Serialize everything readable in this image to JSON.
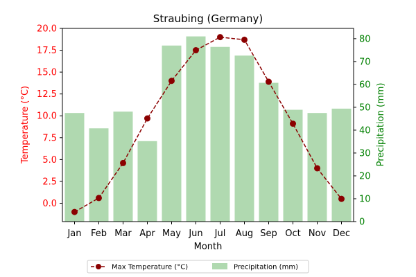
{
  "chart_data": {
    "type": "bar+line",
    "title": "Straubing (Germany)",
    "xlabel": "Month",
    "ylabel_left": "Temperature (°C)",
    "ylabel_right": "Precipitation (mm)",
    "categories": [
      "Jan",
      "Feb",
      "Mar",
      "Apr",
      "May",
      "Jun",
      "Jul",
      "Aug",
      "Sep",
      "Oct",
      "Nov",
      "Dec"
    ],
    "ylim_left": [
      -2.1,
      20.0
    ],
    "ylim_right": [
      0,
      84.5
    ],
    "yticks_left": [
      "0.0",
      "2.5",
      "5.0",
      "7.5",
      "10.0",
      "12.5",
      "15.0",
      "17.5",
      "20.0"
    ],
    "yticks_right": [
      "0",
      "10",
      "20",
      "30",
      "40",
      "50",
      "60",
      "70",
      "80"
    ],
    "grid": false,
    "legend_position": "bottom-center",
    "series": [
      {
        "name": "Max Temperature (°C)",
        "kind": "line",
        "axis": "left",
        "color": "#8b0000",
        "style": "dashed",
        "marker": "circle",
        "values": [
          -1.0,
          0.6,
          4.6,
          9.7,
          14.0,
          17.5,
          19.0,
          18.7,
          13.9,
          9.1,
          4.0,
          0.5
        ]
      },
      {
        "name": "Precipitation (mm)",
        "kind": "bar",
        "axis": "right",
        "color": "#b0d9b0",
        "values": [
          47.5,
          40.8,
          48.1,
          35.2,
          77.0,
          81.0,
          76.4,
          72.6,
          60.7,
          48.9,
          47.5,
          49.4
        ]
      }
    ],
    "colors": {
      "left_axis": "#ff0000",
      "right_axis": "#008000"
    }
  }
}
